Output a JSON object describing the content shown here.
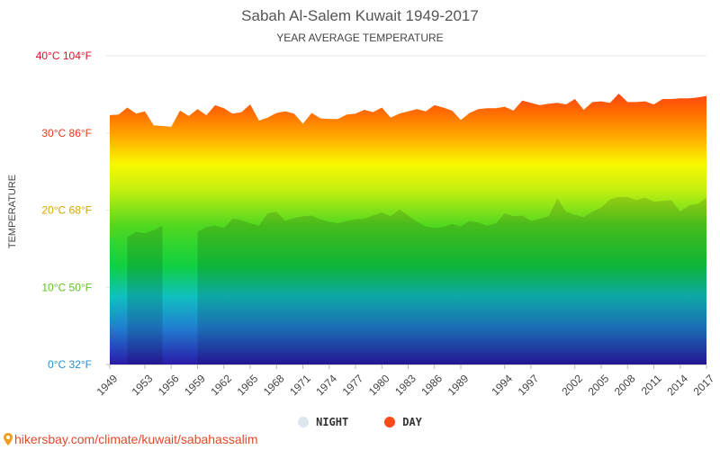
{
  "chart_data": {
    "type": "area",
    "title": "Sabah Al-Salem Kuwait 1949-2017",
    "subtitle": "YEAR AVERAGE TEMPERATURE",
    "ylabel": "TEMPERATURE",
    "ylim": [
      0,
      40
    ],
    "y_ticks": [
      {
        "value": 0,
        "label": "0°C 32°F",
        "color": "#2a8fd6"
      },
      {
        "value": 10,
        "label": "10°C 50°F",
        "color": "#5cc41a"
      },
      {
        "value": 20,
        "label": "20°C 68°F",
        "color": "#d9a400"
      },
      {
        "value": 30,
        "label": "30°C 86°F",
        "color": "#e83a18"
      },
      {
        "value": 40,
        "label": "40°C 104°F",
        "color": "#e0102a"
      }
    ],
    "x_tick_labels": [
      "1949",
      "1953",
      "1956",
      "1959",
      "1962",
      "1965",
      "1968",
      "1971",
      "1974",
      "1977",
      "1980",
      "1983",
      "1986",
      "1989",
      "1994",
      "1997",
      "2002",
      "2005",
      "2008",
      "2011",
      "2014",
      "2017"
    ],
    "series": [
      {
        "name": "DAY",
        "color": "#ff4a1a",
        "values": [
          32.3,
          32.4,
          33.3,
          32.5,
          32.8,
          31.0,
          30.9,
          30.8,
          32.9,
          32.2,
          33.1,
          32.3,
          33.6,
          33.2,
          32.5,
          32.7,
          33.7,
          31.6,
          32.0,
          32.6,
          32.8,
          32.5,
          31.2,
          32.6,
          31.9,
          31.8,
          31.8,
          32.4,
          32.5,
          33.0,
          32.7,
          33.3,
          32.0,
          32.5,
          32.8,
          33.1,
          32.8,
          33.6,
          33.3,
          32.9,
          31.7,
          32.6,
          33.1,
          33.2,
          33.2,
          33.4,
          32.9,
          34.2,
          33.9,
          33.6,
          33.8,
          33.9,
          33.7,
          34.4,
          33.0,
          34.0,
          34.1,
          33.9,
          35.1,
          34.0,
          34.0,
          34.1,
          33.7,
          34.4,
          34.4,
          34.5,
          34.5,
          34.6,
          34.8
        ]
      },
      {
        "name": "NIGHT",
        "color": "#dde6ee",
        "values": [
          null,
          null,
          16.5,
          17.2,
          17.0,
          17.4,
          18.0,
          null,
          null,
          null,
          17.2,
          17.8,
          18.0,
          17.7,
          18.9,
          18.7,
          18.3,
          18.0,
          19.6,
          19.8,
          18.6,
          19.0,
          19.2,
          19.3,
          18.8,
          18.5,
          18.3,
          18.6,
          18.8,
          18.9,
          19.3,
          19.7,
          19.2,
          20.1,
          19.3,
          18.5,
          17.9,
          17.7,
          17.8,
          18.2,
          17.9,
          18.6,
          18.4,
          18.0,
          18.3,
          19.6,
          19.2,
          19.3,
          18.6,
          18.9,
          19.2,
          21.5,
          19.8,
          19.4,
          19.1,
          19.8,
          20.3,
          21.4,
          21.7,
          21.7,
          21.3,
          21.6,
          21.1,
          21.2,
          21.3,
          19.8,
          20.6,
          20.8,
          21.6
        ]
      }
    ],
    "x_start_year": 1949,
    "x_end_year": 2017,
    "legend_placement": "bottom",
    "grid": true
  },
  "legend": {
    "night_label": "NIGHT",
    "day_label": "DAY"
  },
  "source": "hikersbay.com/climate/kuwait/sabahassalim"
}
